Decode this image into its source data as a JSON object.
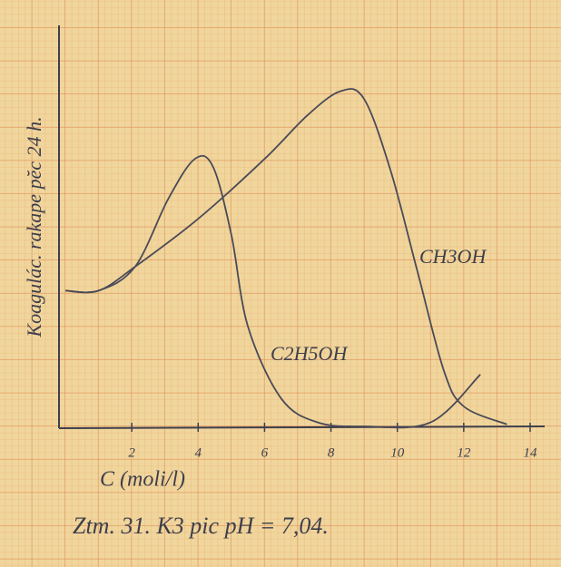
{
  "chart_data": {
    "type": "line",
    "y_label": "Koagulác. rakape pĕc 24 h.",
    "x_label": "C (moli/l)",
    "caption": "Ztm. 31. K3 pic pH = 7,04.",
    "xlim": [
      0,
      14
    ],
    "xticks": [
      2,
      4,
      6,
      8,
      10,
      12,
      14
    ],
    "ylim": [
      0,
      10
    ],
    "series": [
      {
        "name": "CH3OH",
        "color": "#4a4a58",
        "x": [
          0,
          1,
          2.1,
          4,
          6,
          7.3,
          8.3,
          9,
          9.8,
          10.6,
          11.4,
          12,
          13.3
        ],
        "values": [
          3.4,
          3.4,
          4.0,
          5.2,
          6.7,
          7.8,
          8.4,
          8.2,
          6.4,
          3.9,
          1.4,
          0.5,
          0.05
        ]
      },
      {
        "name": "C2H5OH",
        "color": "#4a4a58",
        "x": [
          0,
          1,
          2.1,
          3.1,
          3.9,
          4.45,
          5,
          5.5,
          6.5,
          7.6,
          9,
          11,
          12.5
        ],
        "values": [
          3.4,
          3.4,
          4.0,
          5.7,
          6.7,
          6.5,
          4.8,
          2.5,
          0.7,
          0.1,
          0,
          0.1,
          1.3
        ]
      }
    ]
  }
}
